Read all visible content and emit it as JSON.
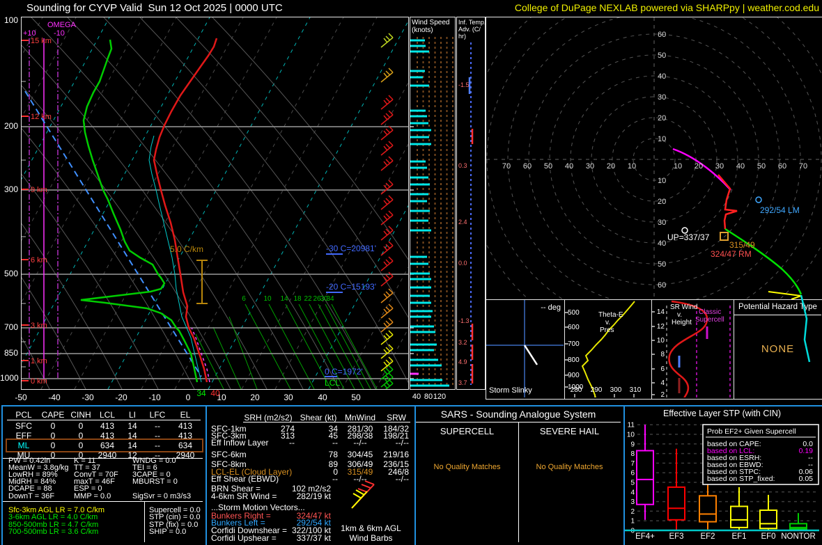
{
  "header": {
    "title": "Sounding for CYVP Valid  Sun 12 Oct 2025 | 0000 UTC",
    "brand": "College of DuPage NEXLAB powered via SHARPpy | weather.cod.edu"
  },
  "skewt": {
    "pressures": [
      "100",
      "200",
      "300",
      "500",
      "700",
      "850",
      "1000"
    ],
    "heights": [
      "15 km",
      "12 km",
      "9 km",
      "6 km",
      "3 km",
      "1 km",
      "0 km"
    ],
    "omega": {
      "label": "OMEGA",
      "plus": "+10",
      "minus": "-10"
    },
    "temp_axis": [
      "-50",
      "-40",
      "-30",
      "-20",
      "-10",
      "0",
      "10",
      "20",
      "30",
      "40",
      "50"
    ],
    "sfc_dwpt": "34",
    "sfc_temp": "40",
    "moist_labels": [
      "6",
      "10",
      "14",
      "18",
      "22",
      "26",
      "30",
      "34"
    ],
    "ann_minus30": "-30 C=20981'",
    "ann_minus20": "-20 C=15193'",
    "ann_zero": "0 C=1972'",
    "ann_lcl": "LCL",
    "ann_lapse": "5.0 C/km"
  },
  "wind_panel": {
    "title1": "Wind Speed",
    "title2": "(knots)",
    "axis": [
      "40",
      "80",
      "120"
    ]
  },
  "adv_panel": {
    "title1": "Inf. Temp.",
    "title2": "Adv. (C/",
    "title3": "hr)",
    "values": [
      "-1.5",
      "0.3",
      "2.4",
      "0.0",
      "-1.3",
      "3.2",
      "4.9",
      "3.7"
    ]
  },
  "hodograph": {
    "rings_left": [
      "70",
      "60",
      "50",
      "40",
      "30",
      "20",
      "10"
    ],
    "rings_right": [
      "10",
      "20",
      "30",
      "40",
      "50",
      "60",
      "70"
    ],
    "rings_top": [
      "10",
      "20",
      "30",
      "40",
      "50",
      "60"
    ],
    "rings_bottom": [
      "10",
      "20",
      "30",
      "40",
      "50",
      "60"
    ],
    "marker_lm": "292/54 LM",
    "marker_up": "UP=337/37",
    "marker_mean": "315/49",
    "marker_rm": "324/47 RM"
  },
  "slinky": {
    "title": "Storm Slinky",
    "deg": "-- deg"
  },
  "thetae": {
    "title1": "Theta-E",
    "title2": "v.",
    "title3": "Pres",
    "y_ticks": [
      "500",
      "600",
      "700",
      "800",
      "900",
      "1000"
    ],
    "x_ticks": [
      "280",
      "290",
      "300",
      "310"
    ]
  },
  "srwind": {
    "title1": "SR Wind",
    "title2": "v.",
    "title3": "Height",
    "y_ticks": [
      "14",
      "12",
      "10",
      "8",
      "6",
      "4",
      "2"
    ],
    "annotation1": "Classic",
    "annotation2": "Supercell"
  },
  "hazard": {
    "title": "Potential Hazard Type",
    "value": "NONE"
  },
  "parcel_table": {
    "headers": [
      "PCL",
      "CAPE",
      "CINH",
      "LCL",
      "LI",
      "LFC",
      "EL"
    ],
    "rows": [
      {
        "label": "SFC",
        "values": [
          "0",
          "0",
          "413",
          "14",
          "--",
          "413"
        ],
        "highlight": false
      },
      {
        "label": "EFF",
        "values": [
          "0",
          "0",
          "413",
          "14",
          "--",
          "413"
        ],
        "highlight": false
      },
      {
        "label": "ML",
        "values": [
          "0",
          "0",
          "634",
          "14",
          "--",
          "634"
        ],
        "highlight": true
      },
      {
        "label": "MU",
        "values": [
          "0",
          "0",
          "2940",
          "12",
          "--",
          "2940"
        ],
        "highlight": false
      }
    ]
  },
  "thermo": {
    "col1": [
      "PW = 0.42in",
      "MeanW = 3.8g/kg",
      "LowRH = 89%",
      "MidRH = 84%",
      "DCAPE = 88",
      "DownT = 36F"
    ],
    "col2": [
      "K = 11",
      "TT = 37",
      "ConvT = 70F",
      "maxT = 46F",
      "ESP = 0",
      "MMP = 0.0"
    ],
    "col3": [
      "WNDG = 0.0",
      "TEI = 6",
      "3CAPE = 0",
      "MBURST = 0",
      "",
      "SigSvr = 0 m3/s3"
    ]
  },
  "lapse": {
    "rows": [
      {
        "text": "Sfc-3km AGL LR = 7.0 C/km",
        "color": "#ffff00"
      },
      {
        "text": "3-6km AGL LR = 4.0 C/km",
        "color": "#00ee00"
      },
      {
        "text": "850-500mb LR = 4.7 C/km",
        "color": "#00ee00"
      },
      {
        "text": "700-500mb LR = 3.6 C/km",
        "color": "#00ee00"
      }
    ],
    "right": [
      "Supercell = 0.0",
      "STP (cin) = 0.0",
      "STP (fix) = 0.0",
      "SHIP = 0.0"
    ]
  },
  "kinematics": {
    "headers": [
      "SRH (m2/s2)",
      "Shear (kt)",
      "MnWind",
      "SRW"
    ],
    "rows": [
      {
        "label": "SFC-1km",
        "srh": "274",
        "shear": "34",
        "mnwind": "281/30",
        "srw": "184/32",
        "color": "#ffffff"
      },
      {
        "label": "SFC-3km",
        "srh": "313",
        "shear": "45",
        "mnwind": "298/38",
        "srw": "198/21",
        "color": "#ffffff"
      },
      {
        "label": "Eff Inflow Layer",
        "srh": "--",
        "shear": "--",
        "mnwind": "--/--",
        "srw": "--/--",
        "color": "#ffffff"
      },
      {
        "label": "SFC-6km",
        "srh": "",
        "shear": "78",
        "mnwind": "304/45",
        "srw": "219/16",
        "color": "#ffffff"
      },
      {
        "label": "SFC-8km",
        "srh": "",
        "shear": "89",
        "mnwind": "306/49",
        "srw": "236/15",
        "color": "#ffffff"
      },
      {
        "label": "LCL-EL (Cloud Layer)",
        "srh": "",
        "shear": "0",
        "mnwind": "315/49",
        "srw": "246/8",
        "color": "#d89020"
      },
      {
        "label": "Eff Shear (EBWD)",
        "srh": "",
        "shear": "--",
        "mnwind": "--/--",
        "srw": "--/--",
        "color": "#ffffff"
      }
    ],
    "brn_label": "BRN Shear =",
    "brn_value": "102 m2/s2",
    "sr46_label": "4-6km SR Wind =",
    "sr46_value": "282/19 kt",
    "smv_title": "...Storm Motion Vectors...",
    "smv_rows": [
      {
        "label": "Bunkers Right =",
        "value": "324/47 kt",
        "color": "#ff5555"
      },
      {
        "label": "Bunkers Left =",
        "value": "292/54 kt",
        "color": "#30a8ff"
      },
      {
        "label": "Corfidi Downshear =",
        "value": "322/100 kt",
        "color": "#ffffff"
      },
      {
        "label": "Corfidi Upshear =",
        "value": "337/37 kt",
        "color": "#ffffff"
      }
    ],
    "caption1": "1km & 6km AGL",
    "caption2": "Wind Barbs"
  },
  "sars": {
    "title": "SARS - Sounding Analogue System",
    "col1": "SUPERCELL",
    "col2": "SEVERE HAIL",
    "match1": "No Quality Matches",
    "match2": "No Quality Matches"
  },
  "stp": {
    "title": "Effective Layer STP (with CIN)",
    "legend_title": "Prob EF2+ Given Supercell",
    "legend": [
      {
        "label": "based on CAPE:",
        "value": "0.0",
        "color": "#ffffff"
      },
      {
        "label": "based on LCL:",
        "value": "0.19",
        "color": "#ff00ff"
      },
      {
        "label": "based on ESRH:",
        "value": "--",
        "color": "#ffffff"
      },
      {
        "label": "based on EBWD:",
        "value": "--",
        "color": "#ffffff"
      },
      {
        "label": "based on STPC:",
        "value": "0.06",
        "color": "#ffffff"
      },
      {
        "label": "based on STP_fixed:",
        "value": "0.05",
        "color": "#ffffff"
      }
    ]
  },
  "chart_data": {
    "type": "boxplot",
    "title": "Effective Layer STP (with CIN)",
    "ylim": [
      0,
      11
    ],
    "yticks": [
      0,
      1,
      2,
      3,
      4,
      5,
      6,
      7,
      8,
      9,
      10,
      11
    ],
    "categories": [
      "EF4+",
      "EF3",
      "EF2",
      "EF1",
      "EF0",
      "NONTOR"
    ],
    "colors": [
      "#ff00ff",
      "#ff0000",
      "#ff8000",
      "#ffff00",
      "#ffff00",
      "#00cc00"
    ],
    "boxes": [
      {
        "category": "EF4+",
        "whisker_low": 1.1,
        "q1": 2.7,
        "median": 5.3,
        "q3": 8.3,
        "whisker_high": 11.0
      },
      {
        "category": "EF3",
        "whisker_low": 0.0,
        "q1": 1.1,
        "median": 2.3,
        "q3": 4.5,
        "whisker_high": 8.5
      },
      {
        "category": "EF2",
        "whisker_low": 0.1,
        "q1": 0.9,
        "median": 1.7,
        "q3": 3.6,
        "whisker_high": 5.7
      },
      {
        "category": "EF1",
        "whisker_low": 0.0,
        "q1": 0.3,
        "median": 1.1,
        "q3": 2.5,
        "whisker_high": 4.5
      },
      {
        "category": "EF0",
        "whisker_low": 0.0,
        "q1": 0.2,
        "median": 0.7,
        "q3": 2.1,
        "whisker_high": 3.7
      },
      {
        "category": "NONTOR",
        "whisker_low": 0.05,
        "q1": 0.15,
        "median": 0.3,
        "q3": 0.7,
        "whisker_high": 1.8
      }
    ]
  }
}
